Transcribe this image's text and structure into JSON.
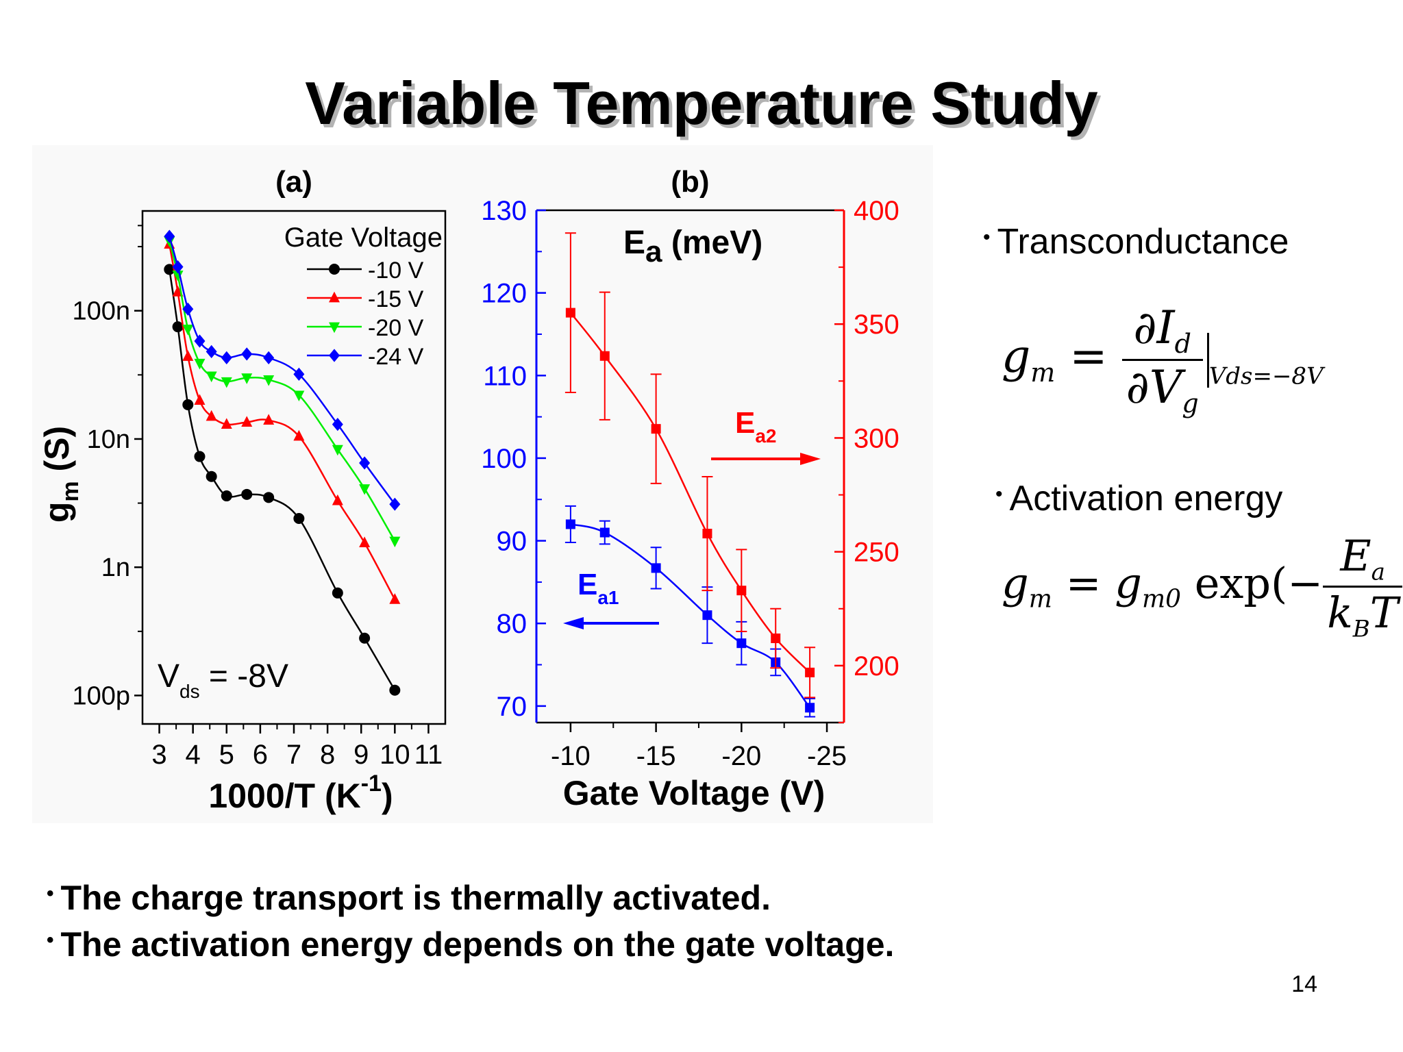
{
  "slide": {
    "title": "Variable Temperature Study",
    "page_number": "14",
    "bullets_right": [
      "Transconductance",
      "Activation energy"
    ],
    "bullets_bottom": [
      "The charge transport is thermally activated.",
      "The activation energy depends on the gate voltage."
    ],
    "equations": {
      "transconductance": {
        "lhs": "g",
        "lhs_sub": "m",
        "num": "∂I",
        "num_sub": "d",
        "den": "∂V",
        "den_sub": "g",
        "eval": "Vds=−8V"
      },
      "activation": {
        "lhs": "g",
        "lhs_sub": "m",
        "rhs_a": "g",
        "rhs_a_sub": "m0",
        "func": "exp(−",
        "num": "E",
        "num_sub": "a",
        "den_a": "k",
        "den_sub": "B",
        "den_b": "T",
        "close": ")"
      }
    }
  },
  "chart_data": [
    {
      "type": "scatter",
      "panel_label": "(a)",
      "xlabel": "1000/T (K",
      "xlabel_sup": "-1",
      "xlabel_end": ")",
      "ylabel": "g",
      "ylabel_sub": "m",
      "ylabel_unit": " (S)",
      "xlim": [
        2.5,
        11.5
      ],
      "ylim": [
        6e-11,
        6e-07
      ],
      "y_scale": "log",
      "x_ticks": [
        3,
        4,
        5,
        6,
        7,
        8,
        9,
        10,
        11
      ],
      "x_tick_labels": [
        "3",
        "4",
        "5",
        "6",
        "7",
        "8",
        "9",
        "10",
        "11"
      ],
      "y_ticks": [
        1e-10,
        1e-09,
        1e-08,
        1e-07
      ],
      "y_tick_labels": [
        "100p",
        "1n",
        "10n",
        "100n"
      ],
      "legend_title": "Gate Voltage",
      "legend_position": "top-right",
      "annotation": {
        "text": "V",
        "sub": "ds",
        "rest": " = -8V"
      },
      "series": [
        {
          "name": "-10 V",
          "color": "#000000",
          "marker": "circle",
          "x": [
            3.3,
            3.55,
            3.85,
            4.2,
            4.55,
            5.0,
            5.6,
            6.25,
            7.15,
            8.3,
            9.1,
            10.0
          ],
          "y": [
            2.1e-07,
            7.5e-08,
            1.85e-08,
            7.3e-09,
            5.1e-09,
            3.6e-09,
            3.7e-09,
            3.5e-09,
            2.4e-09,
            6.3e-10,
            2.8e-10,
            1.1e-10
          ]
        },
        {
          "name": "-15 V",
          "color": "#ff0000",
          "marker": "triangle-up",
          "x": [
            3.3,
            3.55,
            3.85,
            4.2,
            4.55,
            5.0,
            5.6,
            6.25,
            7.15,
            8.3,
            9.1,
            10.0
          ],
          "y": [
            3.3e-07,
            1.4e-07,
            4.4e-08,
            2e-08,
            1.5e-08,
            1.3e-08,
            1.35e-08,
            1.4e-08,
            1.05e-08,
            3.3e-09,
            1.55e-09,
            5.6e-10
          ]
        },
        {
          "name": "-20 V",
          "color": "#00ee00",
          "marker": "triangle-down",
          "x": [
            3.3,
            3.55,
            3.85,
            4.2,
            4.55,
            5.0,
            5.6,
            6.25,
            7.15,
            8.3,
            9.1,
            10.0
          ],
          "y": [
            3.5e-07,
            1.9e-07,
            7.2e-08,
            3.9e-08,
            3.1e-08,
            2.8e-08,
            3e-08,
            2.9e-08,
            2.2e-08,
            8.3e-09,
            4.1e-09,
            1.6e-09
          ]
        },
        {
          "name": "-24 V",
          "color": "#0000ff",
          "marker": "diamond",
          "x": [
            3.3,
            3.55,
            3.85,
            4.2,
            4.55,
            5.0,
            5.6,
            6.25,
            7.15,
            8.3,
            9.1,
            10.0
          ],
          "y": [
            3.8e-07,
            2.2e-07,
            1.03e-07,
            5.8e-08,
            4.8e-08,
            4.3e-08,
            4.6e-08,
            4.3e-08,
            3.2e-08,
            1.3e-08,
            6.5e-09,
            3.1e-09
          ]
        }
      ]
    },
    {
      "type": "line",
      "panel_label": "(b)",
      "title": "E",
      "title_sub": "a",
      "title_rest": " (meV)",
      "xlabel": "Gate Voltage (V)",
      "xlim": [
        -8,
        -26
      ],
      "x_ticks": [
        -10,
        -15,
        -20,
        -25
      ],
      "x_tick_labels": [
        "-10",
        "-15",
        "-20",
        "-25"
      ],
      "ylim_left": [
        68,
        130
      ],
      "y_left_ticks": [
        70,
        80,
        90,
        100,
        110,
        120,
        130
      ],
      "ylim_right": [
        175,
        400
      ],
      "y_right_ticks": [
        200,
        250,
        300,
        350,
        400
      ],
      "left_axis_color": "#0000ff",
      "right_axis_color": "#ff0000",
      "series": [
        {
          "name": "E",
          "name_sub": "a1",
          "axis": "left",
          "color": "#0000ff",
          "marker": "square",
          "x": [
            -10,
            -12,
            -15,
            -18,
            -20,
            -22,
            -24
          ],
          "y": [
            92,
            91,
            86.7,
            81,
            77.6,
            75.3,
            69.8
          ],
          "err": [
            2.2,
            1.4,
            2.5,
            3.4,
            2.6,
            1.6,
            1.1
          ]
        },
        {
          "name": "E",
          "name_sub": "a2",
          "axis": "right",
          "color": "#ff0000",
          "marker": "square",
          "x": [
            -10,
            -12,
            -15,
            -18,
            -20,
            -22,
            -24
          ],
          "y": [
            355,
            336,
            304,
            258,
            233,
            212,
            197
          ],
          "err": [
            35,
            28,
            24,
            25,
            18,
            13,
            11
          ]
        }
      ]
    }
  ]
}
